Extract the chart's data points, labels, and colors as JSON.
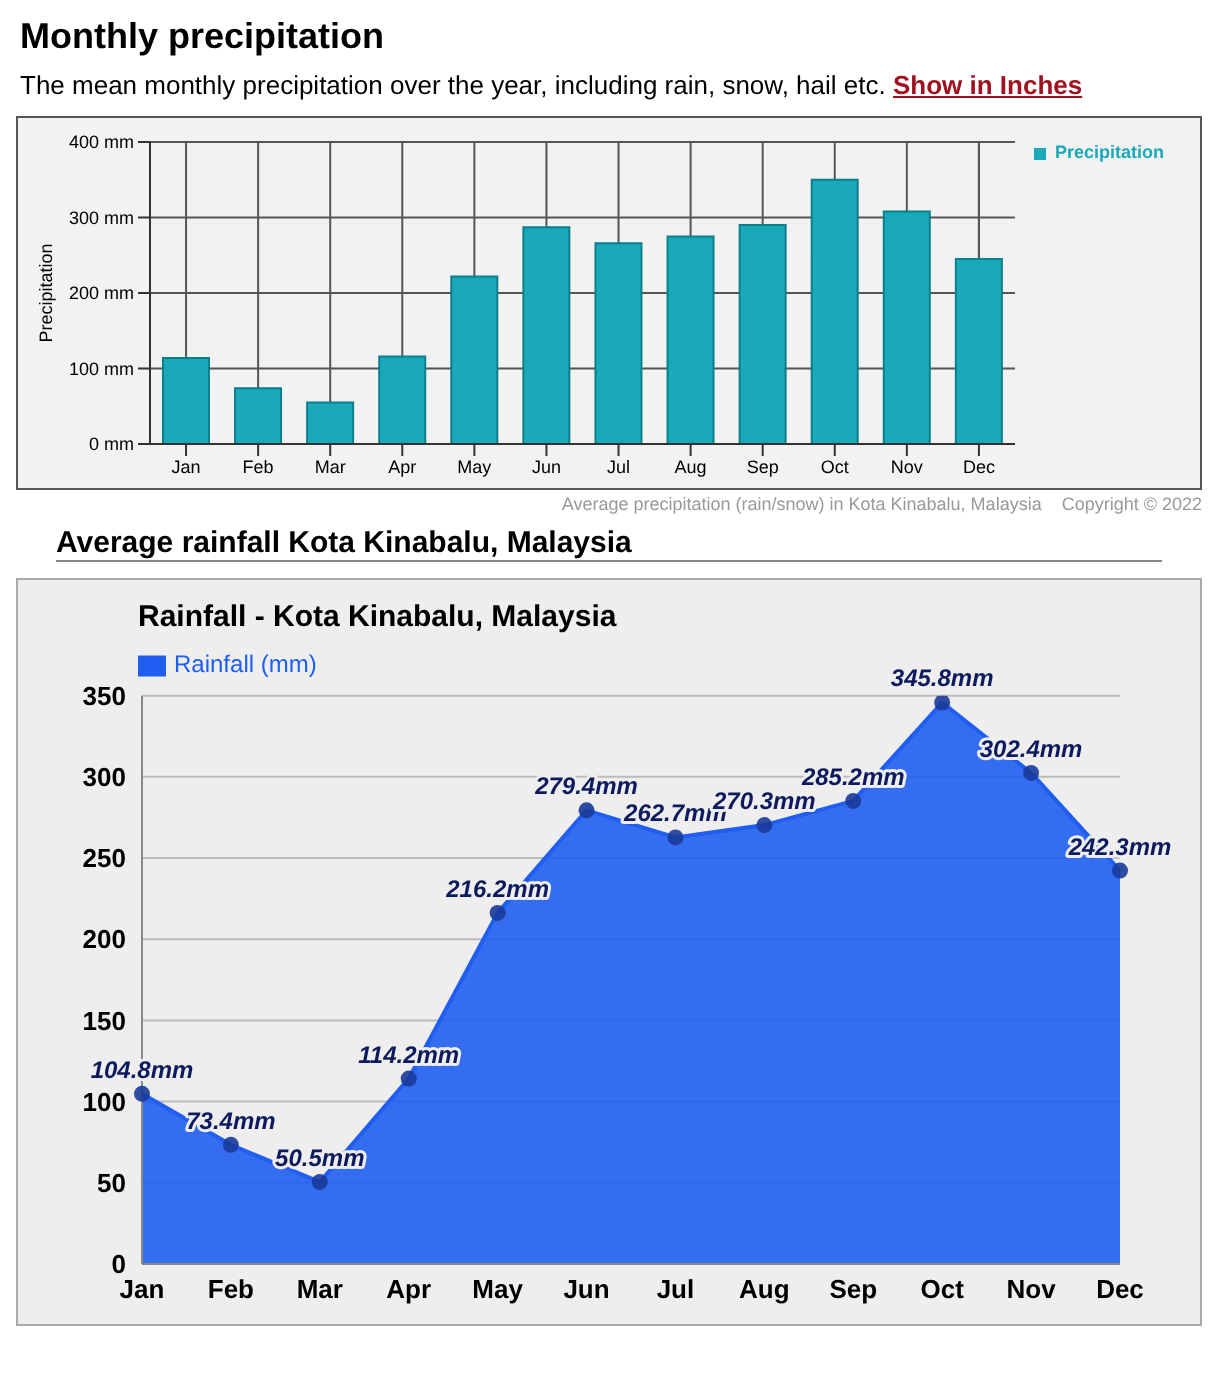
{
  "chart_data": [
    {
      "type": "bar",
      "title": "Monthly precipitation",
      "subtitle": "The mean monthly precipitation over the year, including rain, snow, hail etc.",
      "annotations": [
        "Show in Inches",
        "Average precipitation (rain/snow) in Kota Kinabalu, Malaysia",
        "Copyright © 2022"
      ],
      "ylabel": "Precipitation",
      "categories": [
        "Jan",
        "Feb",
        "Mar",
        "Apr",
        "May",
        "Jun",
        "Jul",
        "Aug",
        "Sep",
        "Oct",
        "Nov",
        "Dec"
      ],
      "series": [
        {
          "name": "Precipitation",
          "color": "#1aa9b8",
          "values": [
            114,
            74,
            55,
            116,
            222,
            287,
            266,
            275,
            290,
            350,
            308,
            245
          ]
        }
      ],
      "ylim": [
        0,
        400
      ],
      "yticks": [
        {
          "value": 0,
          "label": "0 mm"
        },
        {
          "value": 100,
          "label": "100 mm"
        },
        {
          "value": 200,
          "label": "200 mm"
        },
        {
          "value": 300,
          "label": "300 mm"
        },
        {
          "value": 400,
          "label": "400 mm"
        }
      ],
      "grid": true,
      "legend": "top right"
    },
    {
      "type": "area",
      "title": "Average rainfall Kota Kinabalu, Malaysia",
      "subtitle": "Rainfall - Kota Kinabalu, Malaysia",
      "categories": [
        "Jan",
        "Feb",
        "Mar",
        "Apr",
        "May",
        "Jun",
        "Jul",
        "Aug",
        "Sep",
        "Oct",
        "Nov",
        "Dec"
      ],
      "series": [
        {
          "name": "Rainfall (mm)",
          "color": "#1f5ef0",
          "values": [
            104.8,
            73.4,
            50.5,
            114.2,
            216.2,
            279.4,
            262.7,
            270.3,
            285.2,
            345.8,
            302.4,
            242.3
          ],
          "value_labels": [
            "104.8mm",
            "73.4mm",
            "50.5mm",
            "114.2mm",
            "216.2mm",
            "279.4mm",
            "262.7mm",
            "270.3mm",
            "285.2mm",
            "345.8mm",
            "302.4mm",
            "242.3mm"
          ]
        }
      ],
      "ylim": [
        0,
        350
      ],
      "yticks": [
        0,
        50,
        100,
        150,
        200,
        250,
        300,
        350
      ],
      "grid": "y",
      "legend": "top left",
      "marker": "circle"
    }
  ]
}
